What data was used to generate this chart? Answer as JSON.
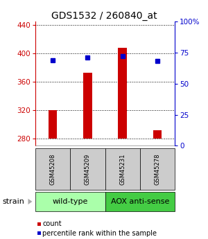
{
  "title": "GDS1532 / 260840_at",
  "samples": [
    "GSM45208",
    "GSM45209",
    "GSM45231",
    "GSM45278"
  ],
  "counts": [
    320,
    373,
    408,
    292
  ],
  "percentiles": [
    69,
    71,
    72,
    68
  ],
  "baseline": 280,
  "ylim_left": [
    270,
    445
  ],
  "ylim_right": [
    0,
    100
  ],
  "yticks_left": [
    280,
    320,
    360,
    400,
    440
  ],
  "yticks_right": [
    0,
    25,
    50,
    75,
    100
  ],
  "bar_color": "#cc0000",
  "dot_color": "#0000cc",
  "bar_width": 0.25,
  "groups": [
    {
      "label": "wild-type",
      "indices": [
        0,
        1
      ],
      "color": "#aaffaa"
    },
    {
      "label": "AOX anti-sense",
      "indices": [
        2,
        3
      ],
      "color": "#44cc44"
    }
  ],
  "strain_label": "strain",
  "legend_items": [
    {
      "color": "#cc0000",
      "label": "count"
    },
    {
      "color": "#0000cc",
      "label": "percentile rank within the sample"
    }
  ],
  "left_axis_color": "#cc0000",
  "right_axis_color": "#0000cc",
  "sample_box_color": "#cccccc",
  "title_fontsize": 10,
  "tick_fontsize": 7.5,
  "sample_fontsize": 6,
  "group_fontsize": 8,
  "legend_fontsize": 7
}
